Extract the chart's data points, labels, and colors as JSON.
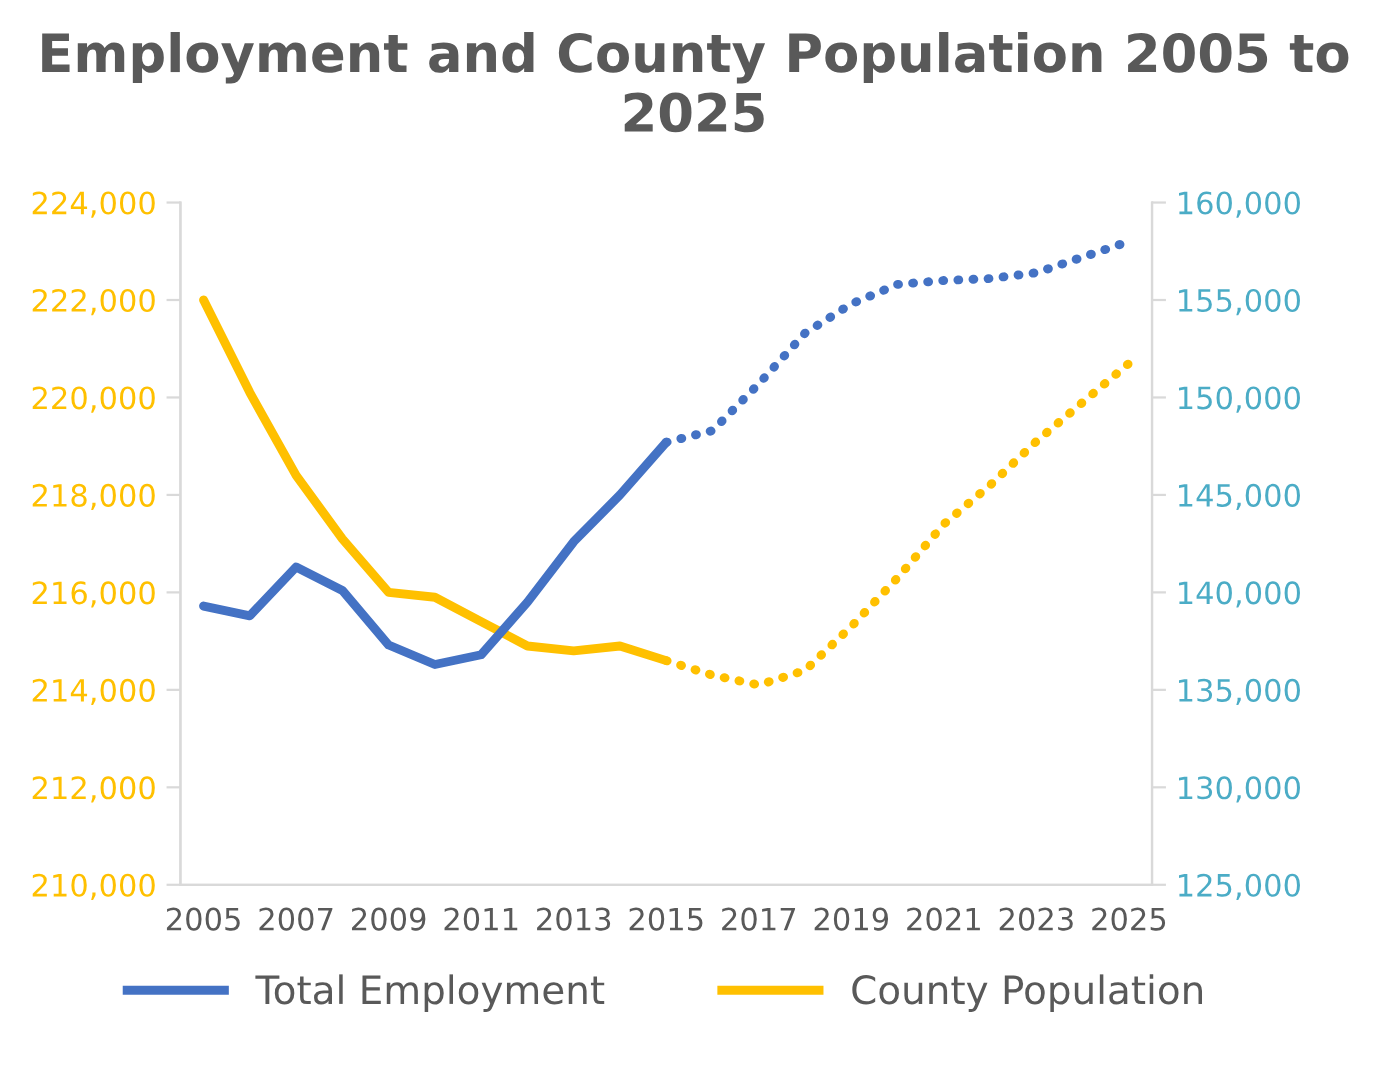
{
  "chart_data": {
    "type": "line",
    "title": "Employment and County Population 2005 to 2025",
    "x": [
      2005,
      2006,
      2007,
      2008,
      2009,
      2010,
      2011,
      2012,
      2013,
      2014,
      2015,
      2016,
      2017,
      2018,
      2019,
      2020,
      2021,
      2022,
      2023,
      2024,
      2025
    ],
    "series": [
      {
        "name": "Total Employment",
        "color": "#4472c4",
        "axis": "y2",
        "line_style": "solid",
        "values": [
          139300,
          138800,
          141300,
          140100,
          137300,
          136300,
          136800,
          139500,
          142600,
          145000,
          147700,
          null,
          null,
          null,
          null,
          null,
          null,
          null,
          null,
          null,
          null
        ]
      },
      {
        "color": "#4472c4",
        "axis": "y2",
        "line_style": "dotted",
        "values": [
          null,
          null,
          null,
          null,
          null,
          null,
          null,
          null,
          null,
          null,
          147700,
          148300,
          150700,
          153300,
          154800,
          155800,
          156000,
          156100,
          156400,
          157200,
          158000
        ]
      },
      {
        "name": "County Population",
        "color": "#ffc000",
        "line_style": "solid",
        "values": [
          222000,
          220100,
          218400,
          217100,
          216000,
          215900,
          215400,
          214900,
          214800,
          214900,
          214600,
          null,
          null,
          null,
          null,
          null,
          null,
          null,
          null,
          null,
          null
        ]
      },
      {
        "color": "#ffc000",
        "line_style": "dotted",
        "values": [
          null,
          null,
          null,
          null,
          null,
          null,
          null,
          null,
          null,
          null,
          214600,
          214300,
          214100,
          214400,
          215300,
          216300,
          217400,
          218200,
          219100,
          219900,
          220700
        ]
      }
    ],
    "xlim": [
      2004.5,
      2025.5
    ],
    "xticks": [
      2005,
      2007,
      2009,
      2011,
      2013,
      2015,
      2017,
      2019,
      2021,
      2023,
      2025
    ],
    "ylim": [
      210000,
      224000
    ],
    "yticks": [
      {
        "value": 210000,
        "label": "210,000"
      },
      {
        "value": 212000,
        "label": "212,000"
      },
      {
        "value": 214000,
        "label": "214,000"
      },
      {
        "value": 216000,
        "label": "216,000"
      },
      {
        "value": 218000,
        "label": "218,000"
      },
      {
        "value": 220000,
        "label": "220,000"
      },
      {
        "value": 222000,
        "label": "222,000"
      },
      {
        "value": 224000,
        "label": "224,000"
      }
    ],
    "y2lim": [
      125000,
      160000
    ],
    "y2ticks": [
      {
        "value": 125000,
        "label": "125,000"
      },
      {
        "value": 130000,
        "label": "130,000"
      },
      {
        "value": 135000,
        "label": "135,000"
      },
      {
        "value": 140000,
        "label": "140,000"
      },
      {
        "value": 145000,
        "label": "145,000"
      },
      {
        "value": 150000,
        "label": "150,000"
      },
      {
        "value": 155000,
        "label": "155,000"
      },
      {
        "value": 160000,
        "label": "160,000"
      }
    ],
    "grid": false,
    "legend": "bottom"
  }
}
